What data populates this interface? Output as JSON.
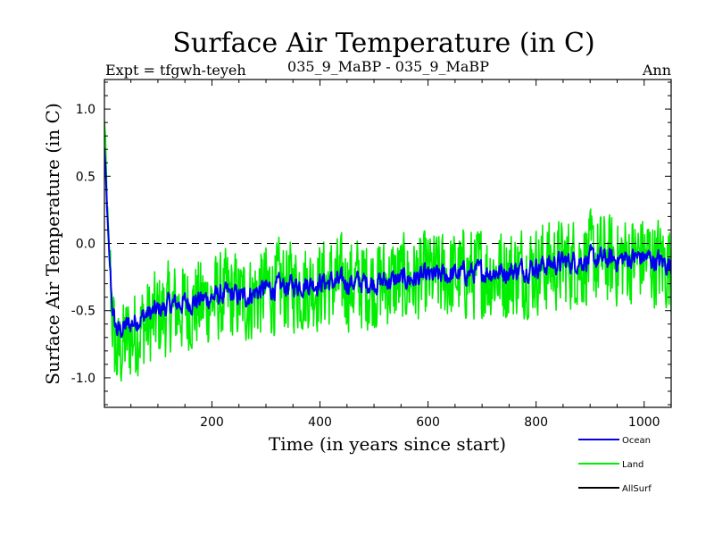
{
  "chart_data": {
    "type": "line",
    "title": "Surface Air Temperature (in C)",
    "subtitle_left": "Expt = tfgwh-teyeh",
    "subtitle_center": "035_9_MaBP - 035_9_MaBP",
    "subtitle_right": "Ann",
    "xlabel": "Time (in years since start)",
    "ylabel": "Surface Air Temperature (in C)",
    "xlim": [
      1,
      1050
    ],
    "ylim": [
      -1.22,
      1.22
    ],
    "xticks": [
      200,
      400,
      600,
      800,
      1000
    ],
    "xtick_labels": [
      "200",
      "400",
      "600",
      "800",
      "1000"
    ],
    "yticks": [
      1.0,
      0.5,
      0.0,
      -0.5,
      -1.0
    ],
    "ytick_labels": [
      "1.0",
      "0.5",
      "0.0",
      "-0.5",
      "-1.0"
    ],
    "reference_line": 0.0,
    "series": [
      {
        "name": "Land",
        "color": "#00ee00",
        "x": [
          1,
          3,
          6,
          10,
          15,
          20,
          25,
          30,
          40,
          50,
          60,
          70,
          80,
          100,
          120,
          150,
          180,
          200,
          230,
          260,
          280,
          300,
          350,
          400,
          450,
          500,
          550,
          600,
          650,
          700,
          750,
          800,
          850,
          900,
          950,
          1000,
          1050
        ],
        "values": [
          0.95,
          0.7,
          0.3,
          -0.1,
          -0.5,
          -0.75,
          -0.85,
          -0.8,
          -0.72,
          -0.7,
          -0.65,
          -0.62,
          -0.6,
          -0.55,
          -0.5,
          -0.47,
          -0.45,
          -0.42,
          -0.4,
          -0.42,
          -0.38,
          -0.35,
          -0.32,
          -0.3,
          -0.3,
          -0.3,
          -0.28,
          -0.26,
          -0.24,
          -0.22,
          -0.22,
          -0.18,
          -0.15,
          -0.12,
          -0.12,
          -0.1,
          -0.18
        ],
        "noise_amplitude": 0.22
      },
      {
        "name": "Ocean",
        "color": "#0000ee",
        "x": [
          1,
          3,
          6,
          10,
          15,
          20,
          25,
          30,
          40,
          50,
          60,
          70,
          80,
          100,
          120,
          150,
          180,
          200,
          230,
          260,
          280,
          300,
          350,
          400,
          450,
          500,
          550,
          600,
          650,
          700,
          750,
          800,
          850,
          900,
          950,
          1000,
          1050
        ],
        "values": [
          0.72,
          0.55,
          0.25,
          -0.1,
          -0.45,
          -0.6,
          -0.65,
          -0.65,
          -0.62,
          -0.6,
          -0.57,
          -0.55,
          -0.53,
          -0.5,
          -0.46,
          -0.44,
          -0.42,
          -0.4,
          -0.38,
          -0.4,
          -0.36,
          -0.34,
          -0.31,
          -0.29,
          -0.29,
          -0.29,
          -0.27,
          -0.25,
          -0.23,
          -0.21,
          -0.21,
          -0.17,
          -0.14,
          -0.12,
          -0.12,
          -0.1,
          -0.16
        ],
        "noise_amplitude": 0.08
      },
      {
        "name": "AllSurf",
        "color": "#000000",
        "x": [],
        "values": []
      }
    ],
    "legend": {
      "placement": "bottom-right",
      "entries": [
        "Ocean",
        "Land",
        "AllSurf"
      ]
    }
  }
}
